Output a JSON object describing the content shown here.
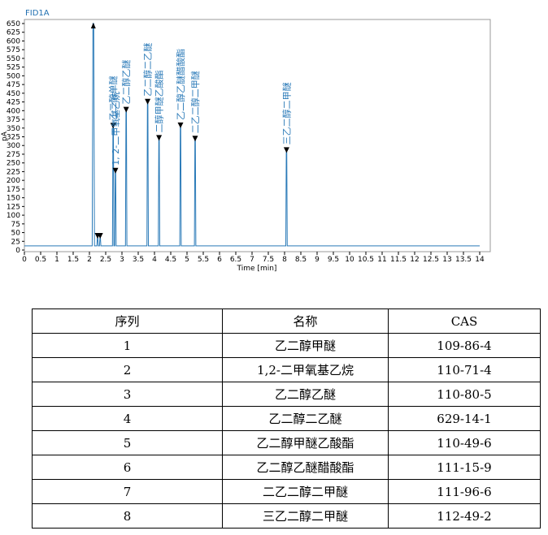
{
  "chart_data": {
    "type": "line",
    "title": "FID1A",
    "xlabel": "Time [min]",
    "ylabel": "pA",
    "xlim": [
      0,
      14
    ],
    "ylim": [
      0,
      650
    ],
    "x_ticks": [
      0,
      0.5,
      1,
      1.5,
      2,
      2.5,
      3,
      3.5,
      4,
      4.5,
      5,
      5.5,
      6,
      6.5,
      7,
      7.5,
      8,
      8.5,
      9,
      9.5,
      10,
      10.5,
      11,
      11.5,
      12,
      12.5,
      13,
      13.5,
      14
    ],
    "x_tick_labels": [
      "0",
      "0.5",
      "1",
      "1.5",
      "2",
      "2.5",
      "3",
      "3.5",
      "4",
      "4.5",
      "5",
      "5.5",
      "6",
      "6.5",
      "7",
      "7.5",
      "8",
      "8.5",
      "9",
      "9.5",
      "10",
      "10.5",
      "11",
      "11.5",
      "12",
      "12.5",
      "13",
      "13.5",
      "14"
    ],
    "y_ticks": [
      0,
      25,
      50,
      75,
      100,
      125,
      150,
      175,
      200,
      225,
      250,
      275,
      300,
      325,
      350,
      375,
      400,
      425,
      450,
      475,
      500,
      525,
      550,
      575,
      600,
      625,
      650
    ],
    "y_tick_labels": [
      "0",
      "25",
      "50",
      "75",
      "100",
      "125",
      "150",
      "175",
      "200",
      "225",
      "250",
      "275",
      "300",
      "325",
      "350",
      "375",
      "400",
      "425",
      "450",
      "475",
      "500",
      "525",
      "550",
      "575",
      "600",
      "625",
      "650"
    ],
    "baseline": 12,
    "line_color": "#2a7ab8",
    "peaks": [
      {
        "rt": 2.12,
        "height": 650,
        "label": ""
      },
      {
        "rt": 2.25,
        "height": 35,
        "label": ""
      },
      {
        "rt": 2.33,
        "height": 35,
        "label": ""
      },
      {
        "rt": 2.73,
        "height": 351,
        "label": "乙二醇单醚"
      },
      {
        "rt": 2.8,
        "height": 222,
        "label": "1, 2-二甲氧基乙烷"
      },
      {
        "rt": 3.13,
        "height": 397,
        "label": "乙二醇乙醚"
      },
      {
        "rt": 3.79,
        "height": 420,
        "label": "乙二醇二乙醚"
      },
      {
        "rt": 4.14,
        "height": 316,
        "label": "二醇甲醚乙酸酯"
      },
      {
        "rt": 4.8,
        "height": 352,
        "label": "乙二醇乙醚醋酸酯"
      },
      {
        "rt": 5.25,
        "height": 314,
        "label": "二乙二醇二甲醚"
      },
      {
        "rt": 8.06,
        "height": 281,
        "label": "三乙二醇二甲醚"
      }
    ]
  },
  "table": {
    "headers": [
      "序列",
      "名称",
      "CAS"
    ],
    "rows": [
      [
        "1",
        "乙二醇甲醚",
        "109-86-4"
      ],
      [
        "2",
        "1,2-二甲氧基乙烷",
        "110-71-4"
      ],
      [
        "3",
        "乙二醇乙醚",
        "110-80-5"
      ],
      [
        "4",
        "乙二醇二乙醚",
        "629-14-1"
      ],
      [
        "5",
        "乙二醇甲醚乙酸酯",
        "110-49-6"
      ],
      [
        "6",
        "乙二醇乙醚醋酸酯",
        "111-15-9"
      ],
      [
        "7",
        "二乙二醇二甲醚",
        "111-96-6"
      ],
      [
        "8",
        "三乙二醇二甲醚",
        "112-49-2"
      ]
    ]
  }
}
